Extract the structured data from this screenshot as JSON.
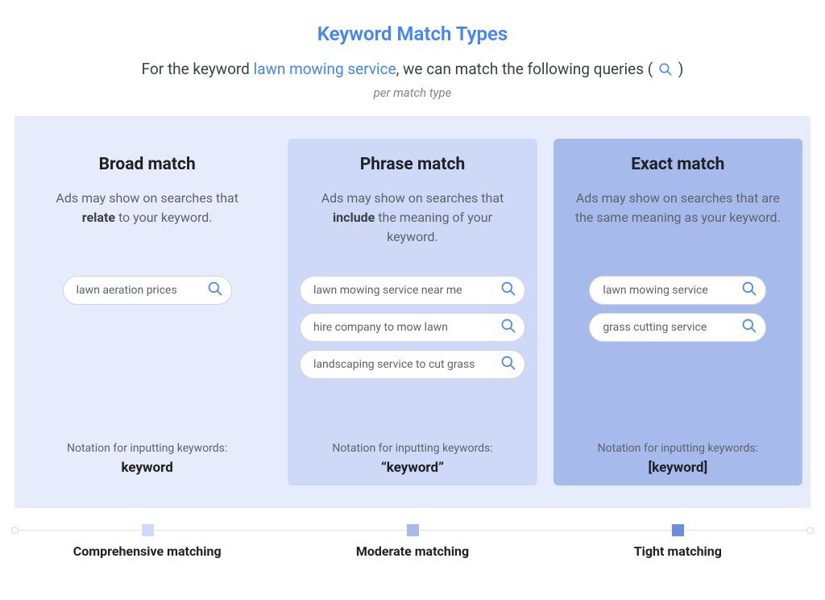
{
  "colors": {
    "primary": "#4285f4",
    "text_dark": "#202124",
    "text_body": "#3c4043",
    "text_muted": "#5f6368",
    "text_caption": "#80868b",
    "pill_border": "#d2d6dc",
    "panel_bg_broad": "#e6ecfb",
    "panel_bg_phrase": "#cdd9f7",
    "panel_bg_exact": "#a7baec",
    "timeline_line": "#e0e3e8",
    "marker_broad": "#cdd9f7",
    "marker_phrase": "#a7baec",
    "marker_exact": "#6b8ee0",
    "background": "#ffffff"
  },
  "title": "Keyword Match Types",
  "subtitle_pre": "For the keyword ",
  "subtitle_keyword": "lawn mowing service",
  "subtitle_post": ", we can match the following queries ( ",
  "subtitle_close": " )",
  "subcaption": "per match type",
  "panels": [
    {
      "id": "broad",
      "title": "Broad match",
      "desc_html": "Ads may show on searches that <b>relate</b> to your keyword.",
      "bg": "#e6ecfb",
      "inner_bg": null,
      "pill_width": 210,
      "queries": [
        "lawn aeration prices"
      ],
      "notation_label": "Notation for inputting keywords:",
      "notation_value": "keyword"
    },
    {
      "id": "phrase",
      "title": "Phrase match",
      "desc_html": "Ads may show on searches that <b>include</b> the meaning of your keyword.",
      "bg": "#e6ecfb",
      "inner_bg": "#cdd9f7",
      "pill_width": 280,
      "queries": [
        "lawn mowing service near me",
        "hire company to mow lawn",
        "landscaping service to cut grass"
      ],
      "notation_label": "Notation for inputting keywords:",
      "notation_value": "“keyword”"
    },
    {
      "id": "exact",
      "title": "Exact match",
      "desc_html": "Ads may show on searches that are the same meaning as your keyword.",
      "bg": "#e6ecfb",
      "inner_bg": "#a7baec",
      "pill_width": 220,
      "queries": [
        "lawn mowing service",
        "grass cutting service"
      ],
      "notation_label": "Notation for inputting keywords:",
      "notation_value": "[keyword]"
    }
  ],
  "timeline": {
    "labels": [
      "Comprehensive matching",
      "Moderate matching",
      "Tight matching"
    ],
    "marker_colors": [
      "#cdd9f7",
      "#a7baec",
      "#6b8ee0"
    ],
    "positions_pct": [
      16.67,
      50,
      83.33
    ]
  }
}
